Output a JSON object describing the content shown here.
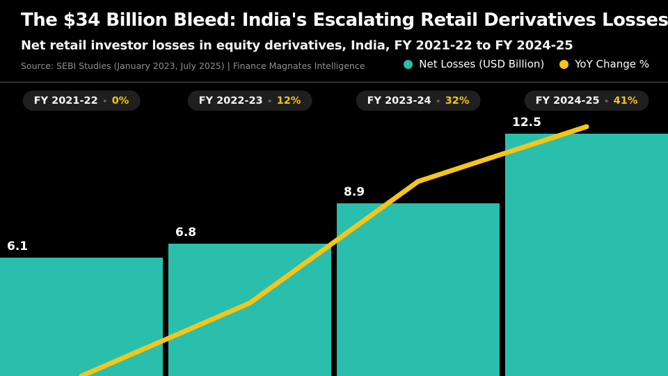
{
  "header": {
    "title": "The $34 Billion Bleed: India's Escalating Retail Derivatives Losses",
    "subtitle": "Net retail investor losses in equity derivatives, India, FY 2021-22 to FY 2024-25",
    "source": "Source: SEBI Studies (January 2023, July 2025) | Finance Magnates Intelligence",
    "legend": [
      {
        "label": "Net Losses (USD Billion)",
        "color": "#2abfad"
      },
      {
        "label": "YoY Change %",
        "color": "#f5c518"
      }
    ]
  },
  "colors": {
    "background": "#000000",
    "bar": "#2abfad",
    "line": "#f5c518",
    "chip_background": "#1f1f1f",
    "chip_percent_text": "#f5c518",
    "divider": "#2e2e2e",
    "source_text": "#8f8f8f"
  },
  "chart_data": {
    "type": "bar",
    "subtype": "bar-with-line-overlay",
    "title": "The $34 Billion Bleed: India's Escalating Retail Derivatives Losses",
    "subtitle": "Net retail investor losses in equity derivatives, India, FY 2021-22 to FY 2024-25",
    "categories": [
      "FY 2021-22",
      "FY 2022-23",
      "FY 2023-24",
      "FY 2024-25"
    ],
    "series": [
      {
        "name": "Net Losses (USD Billion)",
        "type": "bar",
        "values": [
          6.1,
          6.8,
          8.9,
          12.5
        ],
        "labels": [
          "6.1",
          "6.8",
          "8.9",
          "12.5"
        ],
        "color": "#2abfad"
      },
      {
        "name": "YoY Change %",
        "type": "line",
        "values": [
          0,
          12,
          32,
          41
        ],
        "labels": [
          "0%",
          "12%",
          "32%",
          "41%"
        ],
        "color": "#f5c518"
      }
    ],
    "ylim": [
      0,
      15.1
    ],
    "y2lim": [
      0,
      48.2
    ],
    "grid": false,
    "legend_position": "top-right",
    "xlabel": "",
    "ylabel": ""
  }
}
